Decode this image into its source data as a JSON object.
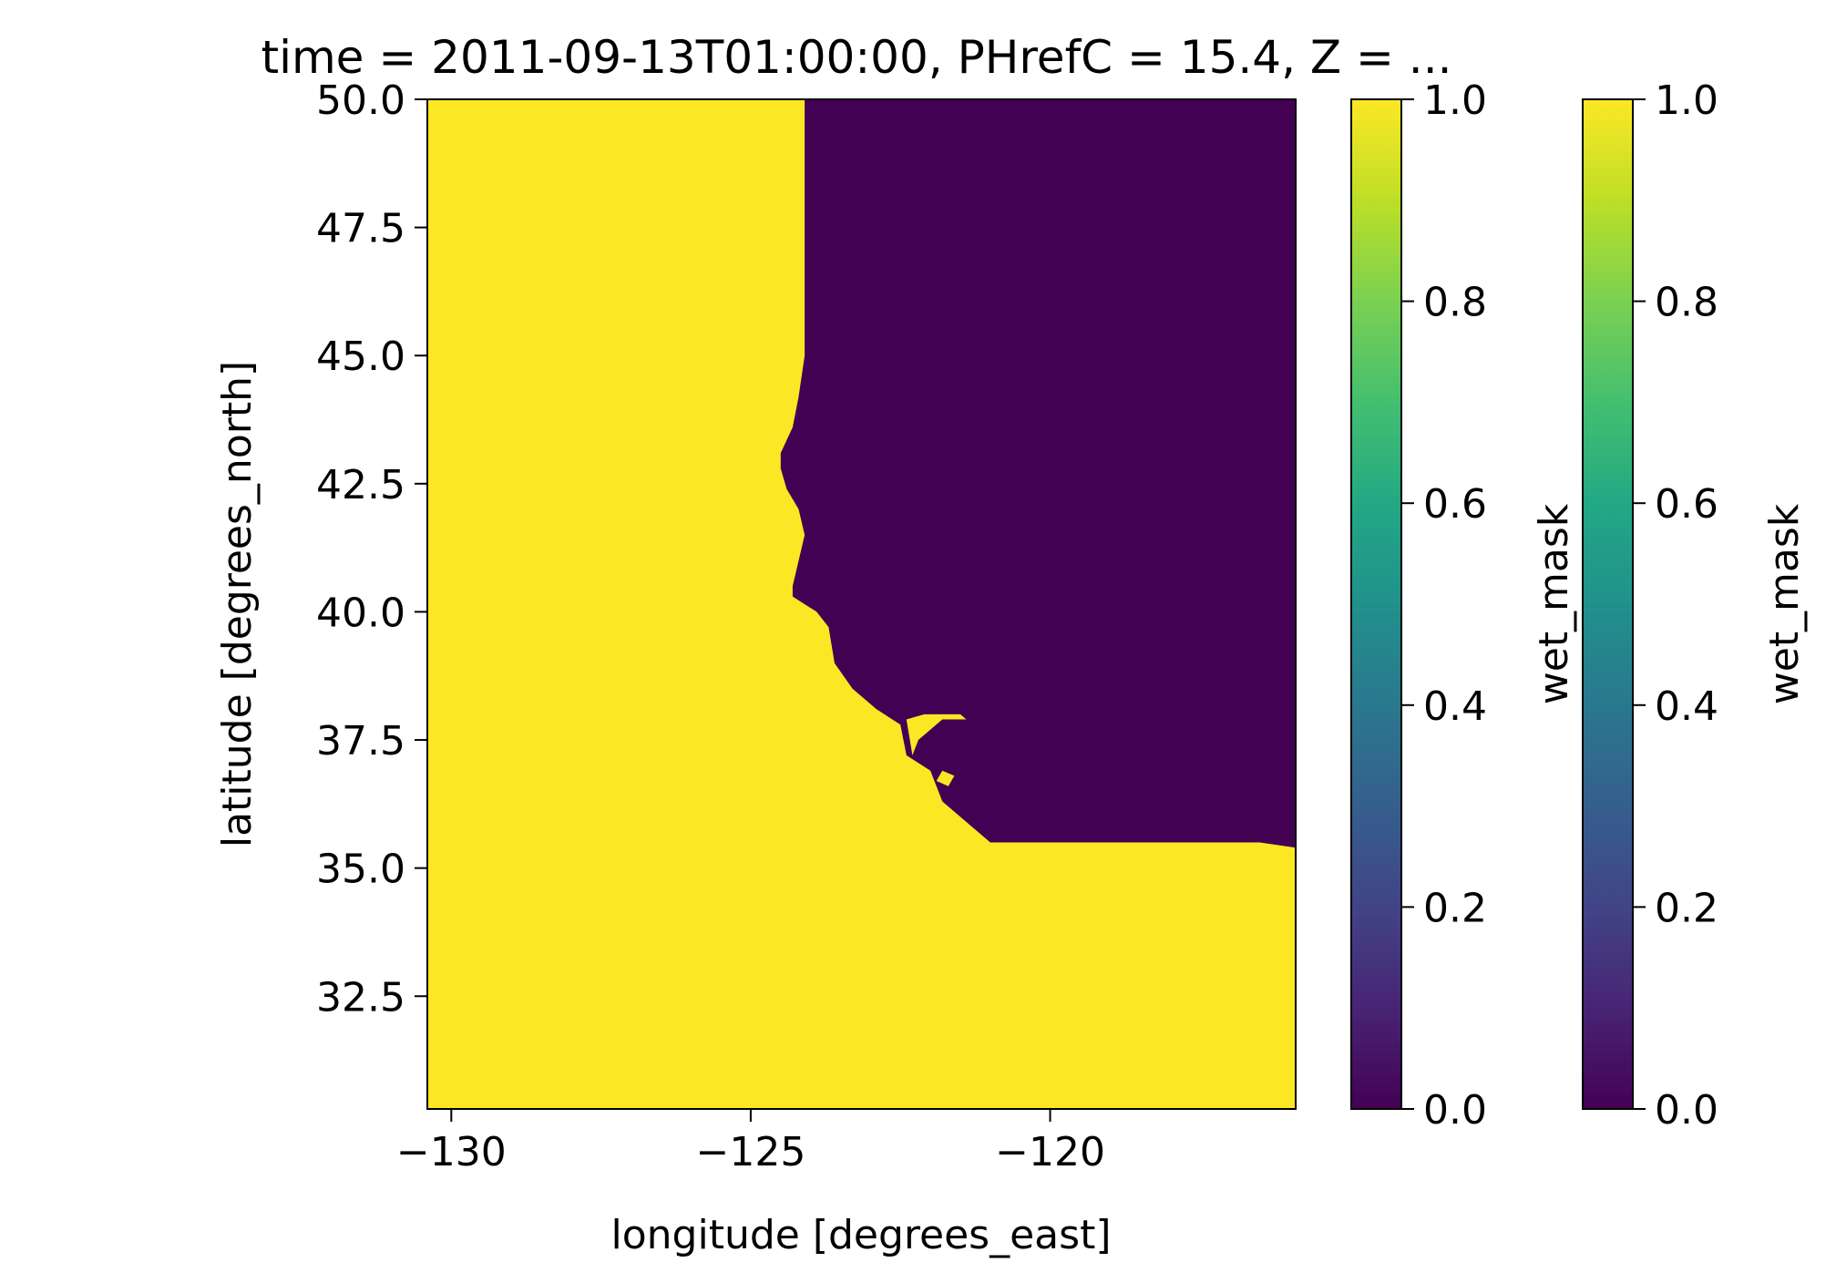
{
  "chart_data": [
    {
      "type": "heatmap",
      "title": "time = 2011-09-13T01:00:00, PHrefC = 15.4, Z = ...",
      "xlabel": "longitude [degrees_east]",
      "ylabel": "latitude [degrees_north]",
      "xlim": [
        -130.4,
        -115.9
      ],
      "ylim": [
        30.3,
        50.0
      ],
      "xticks": [
        -130,
        -125,
        -120
      ],
      "xtick_labels": [
        "−130",
        "−125",
        "−120"
      ],
      "yticks": [
        32.5,
        35.0,
        37.5,
        40.0,
        42.5,
        45.0,
        47.5,
        50.0
      ],
      "ytick_labels": [
        "32.5",
        "35.0",
        "37.5",
        "40.0",
        "42.5",
        "45.0",
        "47.5",
        "50.0"
      ],
      "variable": "wet_mask",
      "value_range": [
        0.0,
        1.0
      ],
      "colormap": "viridis",
      "wet_color": "#fde725",
      "dry_color": "#440154",
      "land_boundary_note_values": "wet_mask = 1 (ocean, yellow) west of coastline; wet_mask = 0 (land, purple) to the east/north-east",
      "coastline": [
        [
          -124.1,
          50.0
        ],
        [
          -124.1,
          45.0
        ],
        [
          -124.2,
          44.2
        ],
        [
          -124.3,
          43.6
        ],
        [
          -124.5,
          43.1
        ],
        [
          -124.5,
          42.8
        ],
        [
          -124.4,
          42.4
        ],
        [
          -124.2,
          42.0
        ],
        [
          -124.1,
          41.5
        ],
        [
          -124.2,
          41.0
        ],
        [
          -124.3,
          40.5
        ],
        [
          -124.3,
          40.3
        ],
        [
          -123.9,
          40.0
        ],
        [
          -123.7,
          39.7
        ],
        [
          -123.6,
          39.0
        ],
        [
          -123.3,
          38.5
        ],
        [
          -122.9,
          38.1
        ],
        [
          -122.5,
          37.8
        ],
        [
          -122.4,
          37.2
        ],
        [
          -122.0,
          36.9
        ],
        [
          -121.9,
          36.6
        ],
        [
          -121.8,
          36.3
        ],
        [
          -121.4,
          35.9
        ],
        [
          -121.0,
          35.5
        ],
        [
          -120.6,
          35.5
        ],
        [
          -118.0,
          35.5
        ],
        [
          -116.5,
          35.5
        ],
        [
          -115.9,
          35.4
        ]
      ],
      "wet_patches_inland": [
        {
          "name": "san-francisco-bay",
          "points": [
            [
              -122.4,
              37.9
            ],
            [
              -122.1,
              38.0
            ],
            [
              -121.8,
              38.0
            ],
            [
              -121.5,
              38.0
            ],
            [
              -121.4,
              37.9
            ],
            [
              -121.8,
              37.9
            ],
            [
              -122.2,
              37.5
            ],
            [
              -122.3,
              37.2
            ]
          ]
        },
        {
          "name": "monterey-bay-inlet",
          "points": [
            [
              -121.8,
              36.9
            ],
            [
              -121.6,
              36.8
            ],
            [
              -121.7,
              36.6
            ],
            [
              -121.9,
              36.7
            ]
          ]
        }
      ]
    },
    {
      "type": "colorbar",
      "label": "wet_mask",
      "ticks": [
        0.0,
        0.2,
        0.4,
        0.6,
        0.8,
        1.0
      ],
      "tick_labels": [
        "0.0",
        "0.2",
        "0.4",
        "0.6",
        "0.8",
        "1.0"
      ],
      "colormap": "viridis"
    },
    {
      "type": "colorbar",
      "label": "wet_mask",
      "ticks": [
        0.0,
        0.2,
        0.4,
        0.6,
        0.8,
        1.0
      ],
      "tick_labels": [
        "0.0",
        "0.2",
        "0.4",
        "0.6",
        "0.8",
        "1.0"
      ],
      "colormap": "viridis"
    }
  ]
}
